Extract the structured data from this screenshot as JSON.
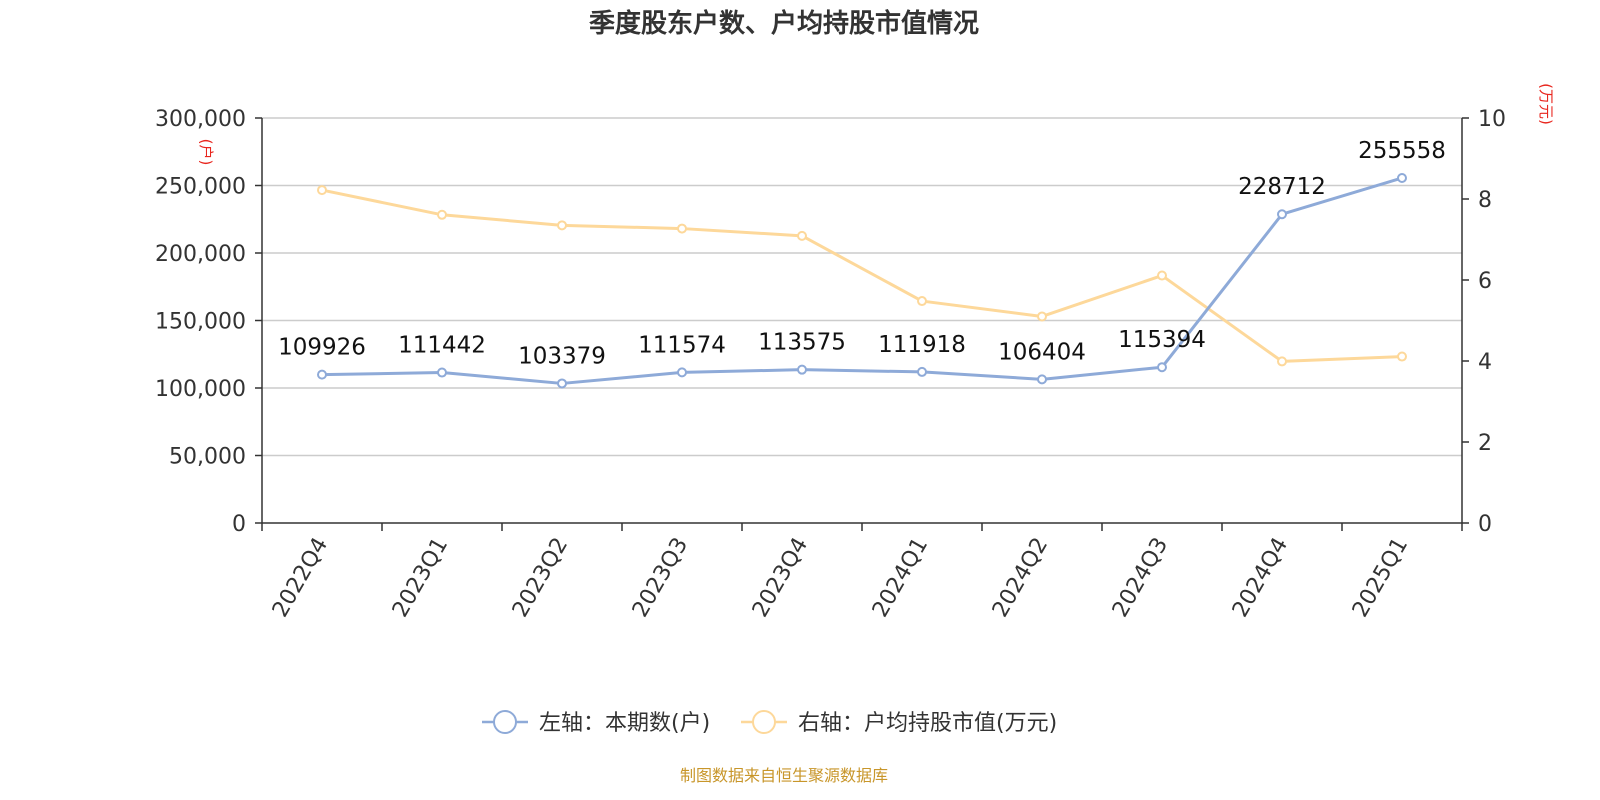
{
  "chart_data": {
    "type": "line",
    "title": "季度股东户数、户均持股市值情况",
    "categories": [
      "2022Q4",
      "2023Q1",
      "2023Q2",
      "2023Q3",
      "2023Q4",
      "2024Q1",
      "2024Q2",
      "2024Q3",
      "2024Q4",
      "2025Q1"
    ],
    "left_axis": {
      "unit": "(户)",
      "min": 0,
      "max": 300000,
      "ticks": [
        "0",
        "50,000",
        "100,000",
        "150,000",
        "200,000",
        "250,000",
        "300,000"
      ],
      "tick_values": [
        0,
        50000,
        100000,
        150000,
        200000,
        250000,
        300000
      ]
    },
    "right_axis": {
      "unit": "(万元)",
      "min": 0,
      "max": 10,
      "ticks": [
        "0",
        "2",
        "4",
        "6",
        "8",
        "10"
      ],
      "tick_values": [
        0,
        2,
        4,
        6,
        8,
        10
      ]
    },
    "series": [
      {
        "name": "左轴：本期数(户)",
        "axis": "left",
        "color": "#8eaad8",
        "values": [
          109926,
          111442,
          103379,
          111574,
          113575,
          111918,
          106404,
          115394,
          228712,
          255558
        ],
        "labels": [
          "109926",
          "111442",
          "103379",
          "111574",
          "113575",
          "111918",
          "106404",
          "115394",
          "228712",
          "255558"
        ]
      },
      {
        "name": "右轴：户均持股市值(万元)",
        "axis": "right",
        "color": "#fdd89a",
        "values": [
          8.22,
          7.61,
          7.35,
          7.27,
          7.09,
          5.48,
          5.1,
          6.11,
          3.99,
          4.11
        ]
      }
    ],
    "grid": true,
    "legend_position": "bottom-center"
  },
  "footer": {
    "source": "制图数据来自恒生聚源数据库"
  }
}
